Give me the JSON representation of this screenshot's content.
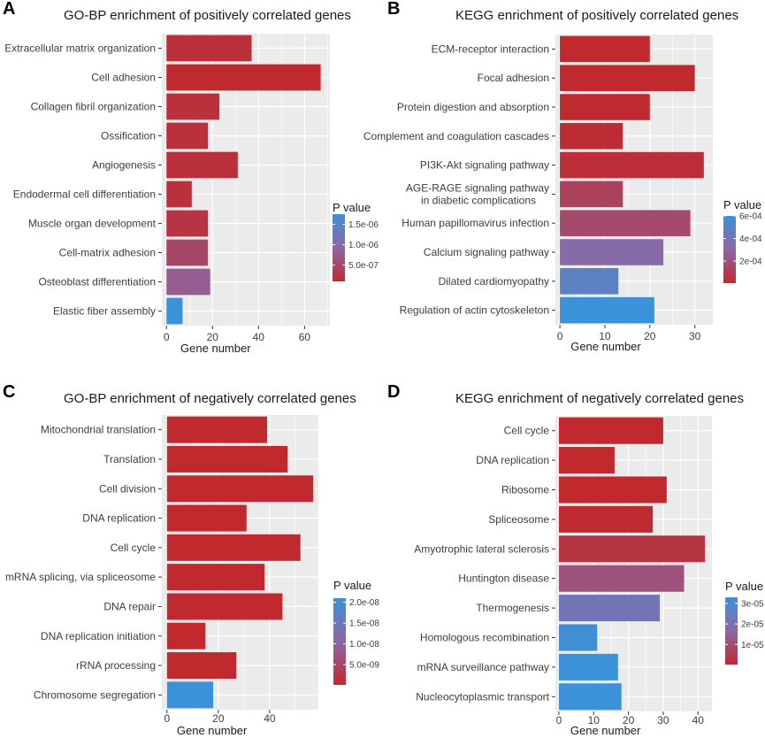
{
  "figure": {
    "xlabel_common": "Gene number",
    "legend_title": "P value"
  },
  "chart_data": [
    {
      "panel": "A",
      "type": "bar",
      "orientation": "horizontal",
      "title": "GO-BP enrichment of positively correlated genes",
      "xlabel": "Gene number",
      "xlim": [
        -2,
        71
      ],
      "xticks": [
        0,
        20,
        40,
        60
      ],
      "categories": [
        "Extracellular matrix organization",
        "Cell adhesion",
        "Collagen fibril organization",
        "Ossification",
        "Angiogenesis",
        "Endodermal cell differentiation",
        "Muscle organ development",
        "Cell-matrix adhesion",
        "Osteoblast differentiation",
        "Elastic fiber assembly"
      ],
      "values": [
        37,
        67,
        23,
        18,
        31,
        11,
        18,
        18,
        19,
        7
      ],
      "pvalues": [
        2e-07,
        1e-07,
        2e-07,
        2e-07,
        2e-07,
        2e-07,
        2.5e-07,
        5e-07,
        8e-07,
        1.75e-06
      ],
      "legend": {
        "title": "P value",
        "min": 1e-07,
        "max": 1.75e-06,
        "ticks": [
          5e-07,
          1e-06,
          1.5e-06
        ],
        "tick_labels": [
          "5.0e-07",
          "1.0e-06",
          "1.5e-06"
        ]
      }
    },
    {
      "panel": "B",
      "type": "bar",
      "orientation": "horizontal",
      "title": "KEGG  enrichment of positively correlated genes",
      "xlabel": "Gene number",
      "xlim": [
        -1,
        34
      ],
      "xticks": [
        0,
        10,
        20,
        30
      ],
      "categories": [
        "ECM-receptor interaction",
        "Focal adhesion",
        "Protein digestion and absorption",
        "Complement and coagulation cascades",
        "PI3K-Akt signaling pathway",
        "AGE-RAGE signaling pathway\nin diabetic complications",
        "Human papillomavirus infection",
        "Calcium signaling pathway",
        "Dilated cardiomyopathy",
        "Regulation of actin cytoskeleton"
      ],
      "values": [
        20,
        30,
        20,
        14,
        32,
        14,
        29,
        23,
        13,
        21
      ],
      "pvalues": [
        5e-06,
        5e-06,
        1e-05,
        2e-05,
        3e-05,
        0.00012,
        0.00016,
        0.00032,
        0.00048,
        0.0006
      ],
      "legend": {
        "title": "P value",
        "min": 5e-06,
        "max": 0.0006,
        "ticks": [
          0.0002,
          0.0004,
          0.0006
        ],
        "tick_labels": [
          "2e-04",
          "4e-04",
          "6e-04"
        ]
      }
    },
    {
      "panel": "C",
      "type": "bar",
      "orientation": "horizontal",
      "title": "GO-BP enrichment of negatively correlated genes",
      "xlabel": "Gene number",
      "xlim": [
        -2,
        59
      ],
      "xticks": [
        0,
        20,
        40
      ],
      "categories": [
        "Mitochondrial translation",
        "Translation",
        "Cell division",
        "DNA replication",
        "Cell cycle",
        "mRNA splicing, via spliceosome",
        "DNA repair",
        "DNA replication initiation",
        "rRNA processing",
        "Chromosome segregation"
      ],
      "values": [
        39,
        47,
        57,
        31,
        52,
        38,
        45,
        15,
        27,
        18
      ],
      "pvalues": [
        1e-10,
        1e-10,
        1e-10,
        1e-10,
        1e-10,
        1e-10,
        1e-10,
        1e-10,
        1e-10,
        2.1e-08
      ],
      "legend": {
        "title": "P value",
        "min": 1e-10,
        "max": 2.1e-08,
        "ticks": [
          5e-09,
          1e-08,
          1.5e-08,
          2e-08
        ],
        "tick_labels": [
          "5.0e-09",
          "1.0e-08",
          "1.5e-08",
          "2.0e-08"
        ]
      }
    },
    {
      "panel": "D",
      "type": "bar",
      "orientation": "horizontal",
      "title": "KEGG  enrichment of negatively correlated genes",
      "xlabel": "Gene number",
      "xlim": [
        -1,
        44
      ],
      "xticks": [
        0,
        10,
        20,
        30,
        40
      ],
      "categories": [
        "Cell cycle",
        "DNA replication",
        "Ribosome",
        "Spliceosome",
        "Amyotrophic lateral sclerosis",
        "Huntington disease",
        "Thermogenesis",
        "Homologous recombination",
        "mRNA surveillance pathway",
        "Nucleocytoplasmic transport"
      ],
      "values": [
        30,
        16,
        31,
        27,
        42,
        36,
        29,
        11,
        17,
        18
      ],
      "pvalues": [
        2e-07,
        2e-07,
        2e-07,
        5e-07,
        3e-06,
        1.1e-05,
        2.2e-05,
        3.2e-05,
        3.3e-05,
        3.3e-05
      ],
      "legend": {
        "title": "P value",
        "min": 2e-07,
        "max": 3.3e-05,
        "ticks": [
          1e-05,
          2e-05,
          3e-05
        ],
        "tick_labels": [
          "1e-05",
          "2e-05",
          "3e-05"
        ]
      }
    }
  ],
  "colors": {
    "low": "#c0292e",
    "mid": "#8c67a5",
    "high": "#3b92d8",
    "panel_bg": "#ebebeb",
    "grid": "#ffffff",
    "text": "#3d3d3d",
    "title": "#1a1a1a"
  }
}
